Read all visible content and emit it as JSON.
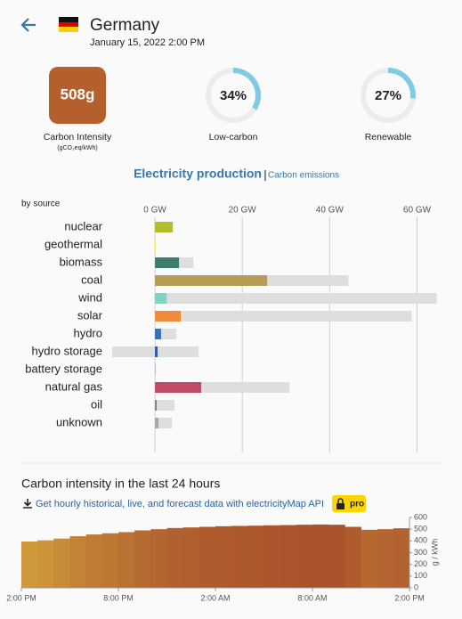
{
  "header": {
    "country": "Germany",
    "datetime": "January 15, 2022 2:00 PM"
  },
  "kpis": {
    "carbon_intensity": {
      "value": 508,
      "value_label": "508g",
      "label": "Carbon Intensity",
      "unit": "(gCO₂eq/kWh)"
    },
    "low_carbon": {
      "value": 34,
      "value_label": "34%",
      "label": "Low-carbon"
    },
    "renewable": {
      "value": 27,
      "value_label": "27%",
      "label": "Renewable"
    }
  },
  "tabs": {
    "active": "Electricity production",
    "separator": "|",
    "other": "Carbon emissions"
  },
  "production_chart": {
    "type": "bar",
    "ylabel": "by source",
    "categories": [
      "nuclear",
      "geothermal",
      "biomass",
      "coal",
      "wind",
      "solar",
      "hydro",
      "hydro storage",
      "battery storage",
      "natural gas",
      "oil",
      "unknown"
    ],
    "values": [
      4.1,
      0.04,
      5.5,
      25.7,
      2.7,
      5.9,
      1.4,
      0.6,
      0,
      10.6,
      0.4,
      0.8
    ],
    "capacity_low": [
      0,
      0,
      0,
      0,
      0,
      0,
      0,
      -9.8,
      -0.1,
      0,
      0,
      0
    ],
    "capacity": [
      4.1,
      0.04,
      8.8,
      44.3,
      64.5,
      58.8,
      4.9,
      10,
      0.1,
      30.8,
      4.5,
      3.9
    ],
    "colors": [
      "#b5bd2a",
      "#ffee33",
      "#3f7d6e",
      "#b79c55",
      "#82d3c2",
      "#f08a3a",
      "#3572b7",
      "#2a5aa8",
      "#b0b0b0",
      "#c24c66",
      "#8a7f6a",
      "#a8a8a8"
    ],
    "capacity_color": "#dedede",
    "xlim": [
      -10,
      65
    ],
    "xticks": [
      {
        "value": 0,
        "label": "0 GW"
      },
      {
        "value": 20,
        "label": "20 GW"
      },
      {
        "value": 40,
        "label": "40 GW"
      },
      {
        "value": 60,
        "label": "60 GW"
      }
    ],
    "grid": true
  },
  "history_chart": {
    "type": "area",
    "title": "Carbon intensity in the last 24 hours",
    "link": "Get hourly historical, live, and forecast data with electricityMap API",
    "badge": "pro",
    "ylabel": "g / kWh",
    "x": [
      0,
      1,
      2,
      3,
      4,
      5,
      6,
      7,
      8,
      9,
      10,
      11,
      12,
      13,
      14,
      15,
      16,
      17,
      18,
      19,
      20,
      21,
      22,
      23
    ],
    "values": [
      395,
      405,
      420,
      440,
      455,
      465,
      475,
      490,
      500,
      510,
      515,
      520,
      525,
      528,
      530,
      533,
      535,
      538,
      540,
      538,
      520,
      495,
      500,
      508
    ],
    "xlim": [
      0,
      24
    ],
    "xticks": [
      {
        "value": 0,
        "label": "2:00 PM"
      },
      {
        "value": 6,
        "label": "8:00 PM"
      },
      {
        "value": 12,
        "label": "2:00 AM"
      },
      {
        "value": 18,
        "label": "8:00 AM"
      },
      {
        "value": 24,
        "label": "2:00 PM"
      }
    ],
    "ylim": [
      0,
      600
    ],
    "yticks": [
      0,
      100,
      200,
      300,
      400,
      500,
      600
    ]
  }
}
